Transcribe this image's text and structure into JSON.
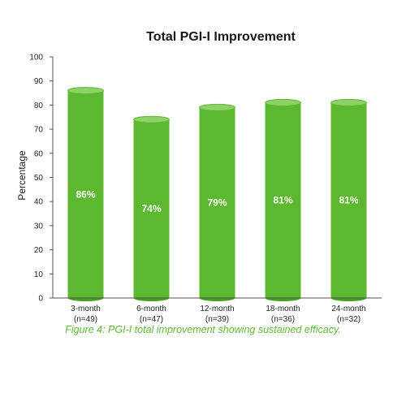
{
  "chart_data": {
    "type": "bar",
    "title": "Total PGI-I Improvement",
    "xlabel": "",
    "ylabel": "Percentage",
    "ylim": [
      0,
      100
    ],
    "yticks": [
      0,
      10,
      20,
      30,
      40,
      50,
      60,
      70,
      80,
      90,
      100
    ],
    "categories": [
      "3-month",
      "6-month",
      "12-month",
      "18-month",
      "24-month"
    ],
    "category_sublabels": [
      "(n=49)",
      "(n=47)",
      "(n=39)",
      "(n=36)",
      "(n=32)"
    ],
    "values": [
      86,
      74,
      79,
      81,
      81
    ],
    "data_labels": [
      "86%",
      "74%",
      "79%",
      "81%",
      "81%"
    ],
    "bar_color": "#5cb82e",
    "grid": false
  },
  "caption": "Figure 4: PGI-I total improvement showing sustained efficacy.",
  "colors": {
    "caption": "#5fb83a",
    "bar": "#5cb82e",
    "bar_top": "#8fd169",
    "bar_shade": "#4a9e22"
  }
}
